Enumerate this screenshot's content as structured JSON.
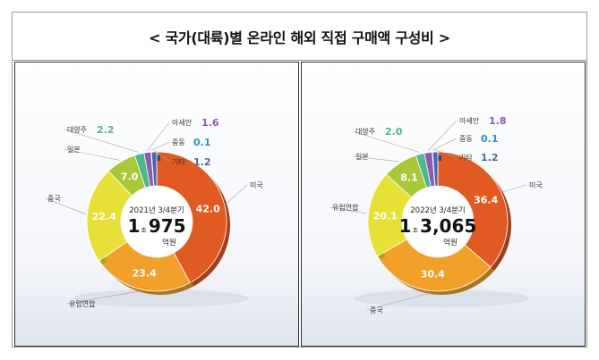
{
  "title": "< 국가(대륙)별 온라인 해외 직접 구매액 구성비 >",
  "chart_data": [
    {
      "type": "pie",
      "donut": true,
      "center_period": "2021년 3/4분기",
      "center_total_prefix": "1",
      "center_total_unit_small": "조",
      "center_total_main": "975",
      "center_total_unit": "억원",
      "slices": [
        {
          "label": "미국",
          "value": 42.0,
          "value_text": "42.0",
          "color": "#e05a22",
          "label_shown": true,
          "value_inside": true
        },
        {
          "label": "유럽연합",
          "value": 23.4,
          "value_text": "23.4",
          "color": "#f2a02a",
          "label_shown": true,
          "value_inside": true
        },
        {
          "label": "중국",
          "value": 22.4,
          "value_text": "22.4",
          "color": "#e7e036",
          "label_shown": true,
          "value_inside": true
        },
        {
          "label": "일본",
          "value": 7.0,
          "value_text": "7.0",
          "color": "#a8c83a",
          "label_shown": true,
          "value_inside": true
        },
        {
          "label": "대양주",
          "value": 2.2,
          "value_text": "2.2",
          "color": "#4fb88a",
          "label_shown": true,
          "value_inside": false
        },
        {
          "label": "아세안",
          "value": 1.6,
          "value_text": "1.6",
          "color": "#8a5bb0",
          "label_shown": true,
          "value_inside": false
        },
        {
          "label": "중동",
          "value": 0.1,
          "value_text": "0.1",
          "color": "#2d8fc4",
          "label_shown": true,
          "value_inside": false
        },
        {
          "label": "기타",
          "value": 1.2,
          "value_text": "1.2",
          "color": "#4b63b0",
          "label_shown": true,
          "value_inside": false
        }
      ]
    },
    {
      "type": "pie",
      "donut": true,
      "center_period": "2022년 3/4분기",
      "center_total_prefix": "1",
      "center_total_unit_small": "조",
      "center_total_main": "3,065",
      "center_total_unit": "억원",
      "slices": [
        {
          "label": "미국",
          "value": 36.4,
          "value_text": "36.4",
          "color": "#e05a22",
          "label_shown": true,
          "value_inside": true
        },
        {
          "label": "중국",
          "value": 30.4,
          "value_text": "30.4",
          "color": "#f2a02a",
          "label_shown": true,
          "value_inside": true
        },
        {
          "label": "유럽연합",
          "value": 20.1,
          "value_text": "20.1",
          "color": "#e7e036",
          "label_shown": true,
          "value_inside": true
        },
        {
          "label": "일본",
          "value": 8.1,
          "value_text": "8.1",
          "color": "#a8c83a",
          "label_shown": true,
          "value_inside": true
        },
        {
          "label": "대양주",
          "value": 2.0,
          "value_text": "2.0",
          "color": "#4fb88a",
          "label_shown": true,
          "value_inside": false
        },
        {
          "label": "아세안",
          "value": 1.8,
          "value_text": "1.8",
          "color": "#8a5bb0",
          "label_shown": true,
          "value_inside": false
        },
        {
          "label": "중동",
          "value": 0.1,
          "value_text": "0.1",
          "color": "#2d8fc4",
          "label_shown": true,
          "value_inside": false
        },
        {
          "label": "기타",
          "value": 1.2,
          "value_text": "1.2",
          "color": "#4b63b0",
          "label_shown": true,
          "value_inside": false
        }
      ]
    }
  ]
}
